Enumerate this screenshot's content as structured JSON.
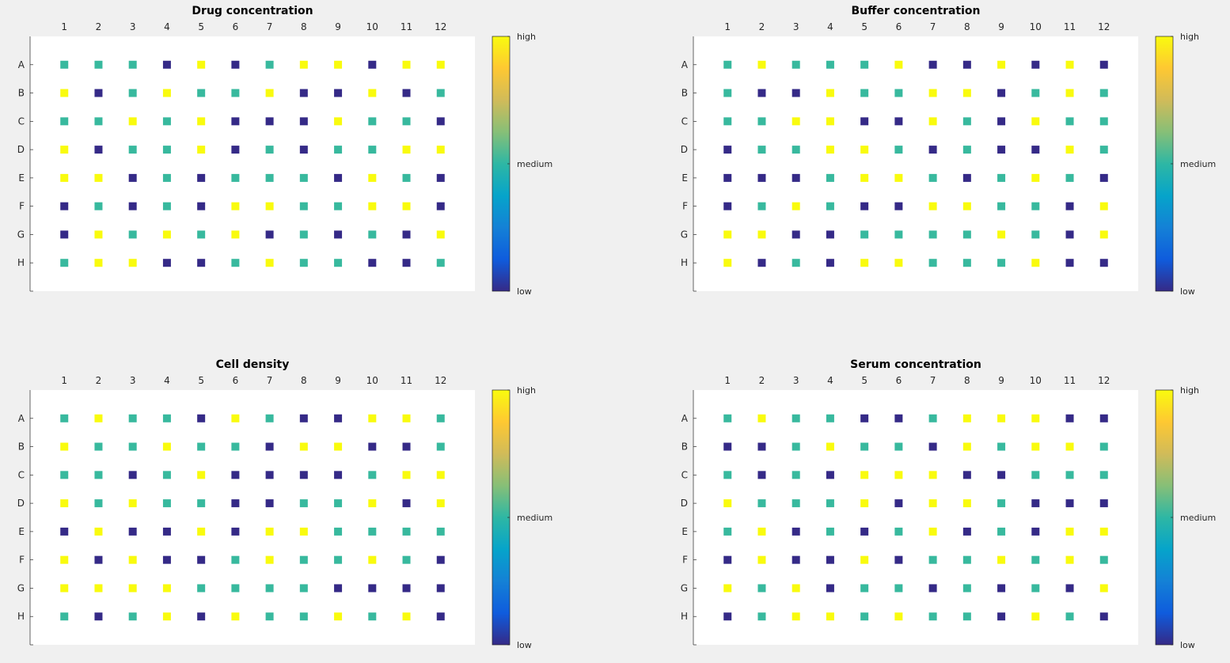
{
  "colors": {
    "low": "#352a87",
    "medium": "#38b99e",
    "high": "#f9fb0e",
    "background": "#f0f0f0"
  },
  "colormap_stops": [
    "#352a87",
    "#0f5cdd",
    "#1481d6",
    "#06a4ca",
    "#2eb7a4",
    "#87bf77",
    "#d1bb59",
    "#fec832",
    "#f9fb0e"
  ],
  "chart_data": [
    {
      "type": "heatmap",
      "title": "Drug concentration",
      "x_ticks": [
        "1",
        "2",
        "3",
        "4",
        "5",
        "6",
        "7",
        "8",
        "9",
        "10",
        "11",
        "12"
      ],
      "y_ticks": [
        "A",
        "B",
        "C",
        "D",
        "E",
        "F",
        "G",
        "H"
      ],
      "xlim": [
        0,
        13
      ],
      "ylim": [
        0,
        9
      ],
      "clim": [
        1,
        3
      ],
      "colorbar_labels": [
        "low",
        "medium",
        "high"
      ],
      "values": [
        [
          2,
          2,
          2,
          1,
          3,
          1,
          2,
          3,
          3,
          1,
          3,
          3
        ],
        [
          3,
          1,
          2,
          3,
          2,
          2,
          3,
          1,
          1,
          3,
          1,
          2
        ],
        [
          2,
          2,
          3,
          2,
          3,
          1,
          1,
          1,
          3,
          2,
          2,
          1
        ],
        [
          3,
          1,
          2,
          2,
          3,
          1,
          2,
          1,
          2,
          2,
          3,
          3
        ],
        [
          3,
          3,
          1,
          2,
          1,
          2,
          2,
          2,
          1,
          3,
          2,
          1
        ],
        [
          1,
          2,
          1,
          2,
          1,
          3,
          3,
          2,
          2,
          3,
          3,
          1
        ],
        [
          1,
          3,
          2,
          3,
          2,
          3,
          1,
          2,
          1,
          2,
          1,
          3
        ],
        [
          2,
          3,
          3,
          1,
          1,
          2,
          3,
          2,
          2,
          1,
          1,
          2
        ]
      ]
    },
    {
      "type": "heatmap",
      "title": "Buffer concentration",
      "x_ticks": [
        "1",
        "2",
        "3",
        "4",
        "5",
        "6",
        "7",
        "8",
        "9",
        "10",
        "11",
        "12"
      ],
      "y_ticks": [
        "A",
        "B",
        "C",
        "D",
        "E",
        "F",
        "G",
        "H"
      ],
      "xlim": [
        0,
        13
      ],
      "ylim": [
        0,
        9
      ],
      "clim": [
        1,
        3
      ],
      "colorbar_labels": [
        "low",
        "medium",
        "high"
      ],
      "values": [
        [
          2,
          3,
          2,
          2,
          2,
          3,
          1,
          1,
          3,
          1,
          3,
          1
        ],
        [
          2,
          1,
          1,
          3,
          2,
          2,
          3,
          3,
          1,
          2,
          3,
          2
        ],
        [
          2,
          2,
          3,
          3,
          1,
          1,
          3,
          2,
          1,
          3,
          2,
          2
        ],
        [
          1,
          2,
          2,
          3,
          3,
          2,
          1,
          2,
          1,
          1,
          3,
          2
        ],
        [
          1,
          1,
          1,
          2,
          3,
          3,
          2,
          1,
          2,
          3,
          2,
          1
        ],
        [
          1,
          2,
          3,
          2,
          1,
          1,
          3,
          3,
          2,
          2,
          1,
          3
        ],
        [
          3,
          3,
          1,
          1,
          2,
          2,
          2,
          2,
          3,
          2,
          1,
          3
        ],
        [
          3,
          1,
          2,
          1,
          3,
          3,
          2,
          2,
          2,
          3,
          1,
          1
        ]
      ]
    },
    {
      "type": "heatmap",
      "title": "Cell density",
      "x_ticks": [
        "1",
        "2",
        "3",
        "4",
        "5",
        "6",
        "7",
        "8",
        "9",
        "10",
        "11",
        "12"
      ],
      "y_ticks": [
        "A",
        "B",
        "C",
        "D",
        "E",
        "F",
        "G",
        "H"
      ],
      "xlim": [
        0,
        13
      ],
      "ylim": [
        0,
        9
      ],
      "clim": [
        1,
        3
      ],
      "colorbar_labels": [
        "low",
        "medium",
        "high"
      ],
      "values": [
        [
          2,
          3,
          2,
          2,
          1,
          3,
          2,
          1,
          1,
          3,
          3,
          2
        ],
        [
          3,
          2,
          2,
          3,
          2,
          2,
          1,
          3,
          3,
          1,
          1,
          2
        ],
        [
          2,
          2,
          1,
          2,
          3,
          1,
          1,
          1,
          1,
          2,
          3,
          3
        ],
        [
          3,
          2,
          3,
          2,
          2,
          1,
          1,
          2,
          2,
          3,
          1,
          3
        ],
        [
          1,
          3,
          1,
          1,
          3,
          1,
          3,
          3,
          2,
          2,
          2,
          2
        ],
        [
          3,
          1,
          3,
          1,
          1,
          2,
          3,
          2,
          2,
          3,
          2,
          1
        ],
        [
          3,
          3,
          3,
          3,
          2,
          2,
          2,
          2,
          1,
          1,
          1,
          1
        ],
        [
          2,
          1,
          2,
          3,
          1,
          3,
          2,
          2,
          3,
          2,
          3,
          1
        ]
      ]
    },
    {
      "type": "heatmap",
      "title": "Serum concentration",
      "x_ticks": [
        "1",
        "2",
        "3",
        "4",
        "5",
        "6",
        "7",
        "8",
        "9",
        "10",
        "11",
        "12"
      ],
      "y_ticks": [
        "A",
        "B",
        "C",
        "D",
        "E",
        "F",
        "G",
        "H"
      ],
      "xlim": [
        0,
        13
      ],
      "ylim": [
        0,
        9
      ],
      "clim": [
        1,
        3
      ],
      "colorbar_labels": [
        "low",
        "medium",
        "high"
      ],
      "values": [
        [
          2,
          3,
          2,
          2,
          1,
          1,
          2,
          3,
          3,
          3,
          1,
          1
        ],
        [
          1,
          1,
          2,
          3,
          2,
          2,
          1,
          3,
          2,
          3,
          3,
          2
        ],
        [
          2,
          1,
          2,
          1,
          3,
          3,
          3,
          1,
          1,
          2,
          2,
          2
        ],
        [
          3,
          2,
          2,
          2,
          3,
          1,
          3,
          3,
          2,
          1,
          1,
          1
        ],
        [
          2,
          3,
          1,
          2,
          1,
          2,
          3,
          1,
          2,
          1,
          3,
          3
        ],
        [
          1,
          3,
          1,
          1,
          3,
          1,
          2,
          2,
          3,
          2,
          3,
          2
        ],
        [
          3,
          2,
          3,
          1,
          2,
          2,
          1,
          2,
          1,
          2,
          1,
          3
        ],
        [
          1,
          2,
          3,
          3,
          2,
          3,
          2,
          2,
          1,
          3,
          2,
          1
        ]
      ]
    }
  ]
}
